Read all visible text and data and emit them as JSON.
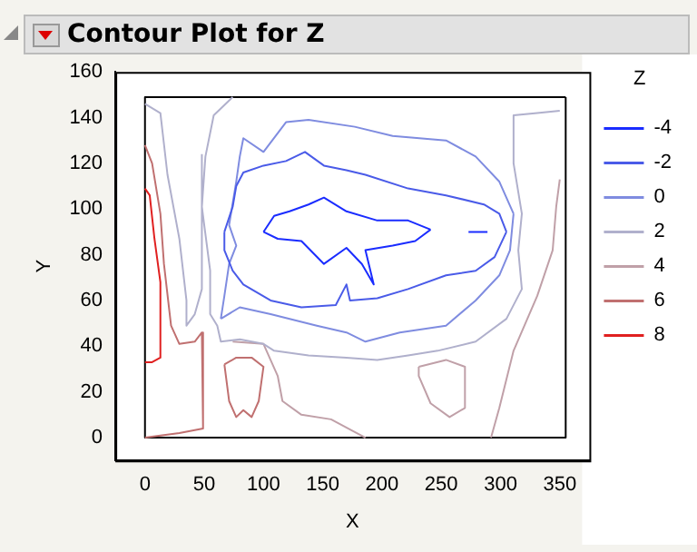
{
  "chart_data": {
    "type": "line",
    "title": "Contour Plot for Z",
    "xlabel": "X",
    "ylabel": "Y",
    "legend_title": "Z",
    "legend": "right",
    "grid": false,
    "marker": "none",
    "line_style": "solid",
    "xlim": [
      -25,
      375
    ],
    "xticks": [
      0,
      50,
      100,
      150,
      200,
      250,
      300,
      350
    ],
    "ylim": [
      -10,
      160
    ],
    "yticks": [
      0,
      20,
      40,
      60,
      80,
      100,
      120,
      140,
      160
    ],
    "series": [
      {
        "name": "-4",
        "color": "#1a2cff",
        "x": [
          100,
          109,
          122,
          138,
          151,
          170,
          196,
          222,
          241,
          null,
          241,
          228,
          209,
          186,
          193,
          183,
          170,
          151,
          132,
          112,
          100,
          null,
          273,
          289
        ],
        "values": [
          90,
          97,
          99,
          102,
          105,
          99,
          95,
          95,
          91,
          null,
          91,
          86,
          84,
          82,
          67,
          76,
          83,
          76,
          86,
          87,
          90,
          null,
          90,
          90
        ]
      },
      {
        "name": "-2",
        "color": "#4a5be8",
        "x": [
          67,
          74,
          77,
          83,
          100,
          119,
          135,
          151,
          170,
          186,
          222,
          254,
          286,
          299,
          305,
          null,
          305,
          295,
          279,
          254,
          222,
          196,
          173,
          170,
          161,
          132,
          106,
          83,
          74,
          67,
          67
        ],
        "values": [
          90,
          101,
          110,
          116,
          119,
          121,
          125,
          119,
          117,
          115,
          109,
          106,
          102,
          98,
          90,
          null,
          90,
          79,
          73,
          71,
          65,
          61,
          60,
          67,
          58,
          57,
          60,
          67,
          73,
          82,
          90
        ]
      },
      {
        "name": "0",
        "color": "#7f8ce0",
        "x": [
          64,
          67,
          71,
          77,
          71,
          77,
          80,
          83,
          100,
          119,
          138,
          177,
          209,
          254,
          279,
          299,
          311,
          null,
          311,
          308,
          299,
          279,
          254,
          215,
          186,
          170,
          145,
          106,
          80,
          64
        ],
        "values": [
          52,
          62,
          76,
          84,
          93,
          112,
          123,
          131,
          125,
          138,
          139,
          136,
          132,
          130,
          123,
          112,
          98,
          null,
          98,
          82,
          71,
          60,
          49,
          46,
          42,
          46,
          49,
          54,
          57,
          52
        ]
      },
      {
        "name": "2",
        "color": "#b0b0cc",
        "x": [
          74,
          58,
          51,
          48,
          55,
          55,
          61,
          64,
          80,
          100,
          109,
          138,
          170,
          196,
          222,
          247,
          279,
          305,
          318,
          315,
          318,
          311,
          311,
          331,
          350,
          null,
          0,
          13,
          19,
          29,
          35,
          35,
          42,
          48,
          48,
          48
        ],
        "values": [
          149,
          141,
          123,
          101,
          73,
          54,
          49,
          42,
          43,
          41,
          38,
          36,
          35,
          34,
          36,
          38,
          42,
          52,
          65,
          82,
          98,
          120,
          141,
          142,
          143,
          null,
          146,
          142,
          115,
          87,
          60,
          49,
          54,
          65,
          101,
          124
        ]
      },
      {
        "name": "4",
        "color": "#c0a0a8",
        "x": [
          74,
          100,
          112,
          116,
          132,
          157,
          186,
          null,
          292,
          299,
          311,
          331,
          344,
          347,
          350,
          null,
          231,
          254,
          270,
          270,
          null,
          270,
          257,
          241,
          231,
          231
        ],
        "values": [
          42,
          41,
          27,
          16,
          10,
          8,
          0,
          null,
          0,
          13,
          38,
          62,
          82,
          101,
          113,
          null,
          31,
          34,
          31,
          13,
          null,
          13,
          9,
          15,
          27,
          31
        ]
      },
      {
        "name": "6",
        "color": "#c07070",
        "x": [
          67,
          77,
          90,
          100,
          96,
          null,
          96,
          90,
          83,
          77,
          71,
          67,
          null,
          0,
          6,
          13,
          16,
          22,
          29,
          42,
          48,
          49,
          29,
          0
        ],
        "values": [
          32,
          35,
          35,
          31,
          16,
          null,
          16,
          9,
          12,
          9,
          16,
          32,
          null,
          128,
          120,
          98,
          76,
          49,
          41,
          42,
          46,
          4,
          2,
          0
        ]
      },
      {
        "name": "8",
        "color": "#e02020",
        "x": [
          0,
          4,
          8,
          13,
          13,
          6,
          0
        ],
        "values": [
          109,
          106,
          87,
          68,
          35,
          33,
          33
        ]
      },
      {
        "color": "#000000",
        "x": [
          0,
          355,
          355,
          null,
          355,
          0,
          0
        ],
        "values": [
          0,
          0,
          149,
          null,
          149,
          149,
          0
        ]
      }
    ]
  }
}
